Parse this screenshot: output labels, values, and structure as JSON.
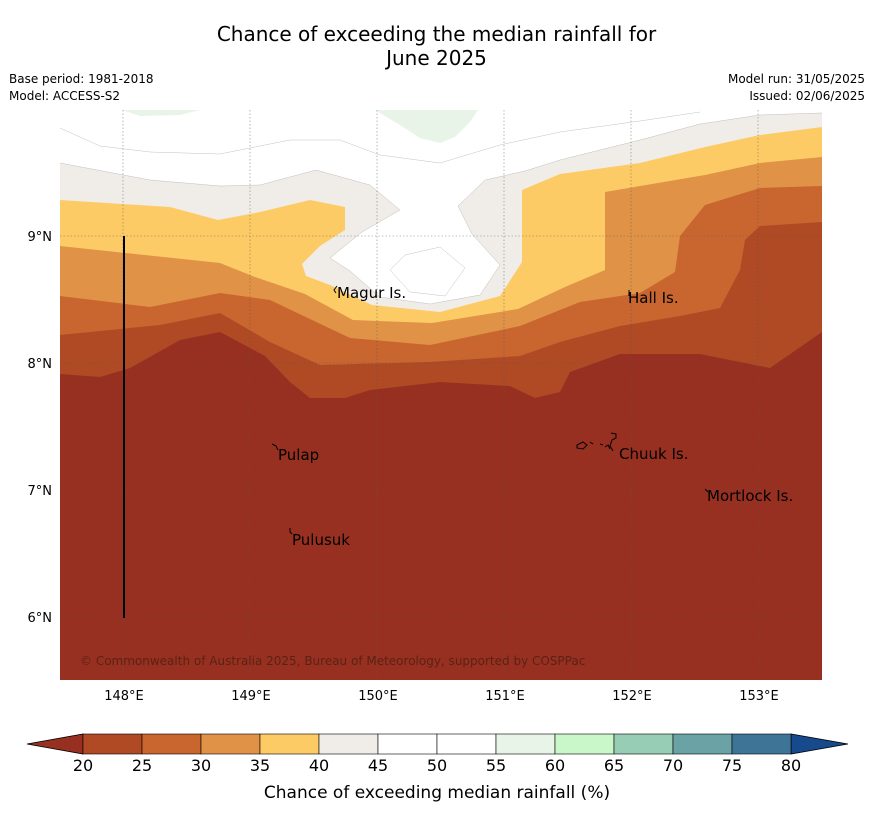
{
  "title": {
    "line1": "Chance of exceeding the median rainfall for",
    "line2": "June 2025"
  },
  "meta_left": {
    "base_period": "Base period: 1981-2018",
    "model": "Model: ACCESS-S2"
  },
  "meta_right": {
    "model_run": "Model run: 31/05/2025",
    "issued": "Issued: 02/06/2025"
  },
  "map": {
    "lon_range": [
      147.5,
      153.5
    ],
    "lat_range": [
      5.5,
      10.0
    ],
    "x_ticks": [
      {
        "lon": 148,
        "label": "148°E"
      },
      {
        "lon": 149,
        "label": "149°E"
      },
      {
        "lon": 150,
        "label": "150°E"
      },
      {
        "lon": 151,
        "label": "151°E"
      },
      {
        "lon": 152,
        "label": "152°E"
      },
      {
        "lon": 153,
        "label": "153°E"
      }
    ],
    "y_ticks": [
      {
        "lat": 9,
        "label": "9°N"
      },
      {
        "lat": 8,
        "label": "8°N"
      },
      {
        "lat": 7,
        "label": "7°N"
      },
      {
        "lat": 6,
        "label": "6°N"
      }
    ],
    "grid": "dotted",
    "places": [
      {
        "name": "Magur Is.",
        "lon": 149.65,
        "lat": 8.55
      },
      {
        "name": "Hall Is.",
        "lon": 151.95,
        "lat": 8.52
      },
      {
        "name": "Pulap",
        "lon": 149.2,
        "lat": 7.25
      },
      {
        "name": "Chuuk Is.",
        "lon": 151.9,
        "lat": 7.27
      },
      {
        "name": "Mortlock Is.",
        "lon": 152.6,
        "lat": 6.95
      },
      {
        "name": "Pulusuk",
        "lon": 149.32,
        "lat": 6.6
      }
    ],
    "copyright": "© Commonwealth of Australia 2025, Bureau of Meteorology, supported by COSPPac"
  },
  "colorbar": {
    "label": "Chance of exceeding median rainfall (%)",
    "ticks": [
      "20",
      "25",
      "30",
      "35",
      "40",
      "45",
      "50",
      "55",
      "60",
      "65",
      "70",
      "75",
      "80"
    ],
    "colors": [
      "#b04a24",
      "#c9652f",
      "#e09346",
      "#fdcb66",
      "#f0ede8",
      "#ffffff",
      "#ffffff",
      "#e8f4e8",
      "#c9f7c9",
      "#98cdb5",
      "#6aa2a6",
      "#3e7596"
    ],
    "under_color": "#983021",
    "over_color": "#174a8c"
  }
}
